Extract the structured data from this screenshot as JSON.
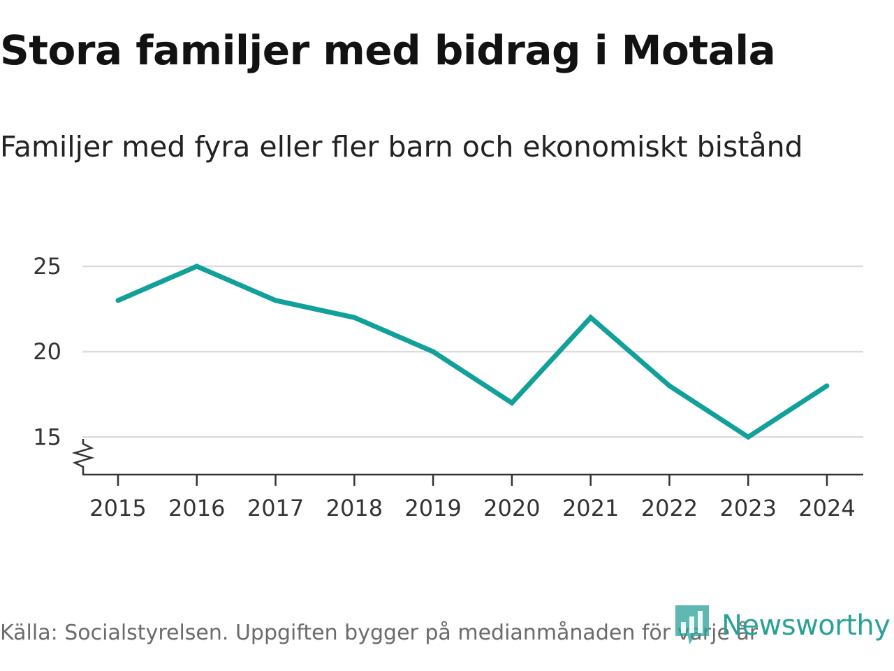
{
  "title": "Stora familjer med bidrag i Motala",
  "subtitle": "Familjer med fyra eller fler barn och ekonomiskt bistånd",
  "source": "Källa: Socialstyrelsen. Uppgiften bygger på medianmånaden för varje år",
  "logo": {
    "text": "Newsworthy",
    "icon": "newsworthy-logo-icon"
  },
  "colors": {
    "line": "#12a19a",
    "grid": "#dcdcdc",
    "axis": "#333333",
    "logo": "#2aa198"
  },
  "chart_data": {
    "type": "line",
    "title": "Stora familjer med bidrag i Motala",
    "subtitle": "Familjer med fyra eller fler barn och ekonomiskt bistånd",
    "xlabel": "",
    "ylabel": "",
    "categories": [
      "2015",
      "2016",
      "2017",
      "2018",
      "2019",
      "2020",
      "2021",
      "2022",
      "2023",
      "2024"
    ],
    "series": [
      {
        "name": "Familjer med fyra eller fler barn och ekonomiskt bistånd",
        "values": [
          23,
          25,
          23,
          22,
          20,
          17,
          22,
          18,
          15,
          18
        ]
      }
    ],
    "y_ticks": [
      15,
      20,
      25
    ],
    "ylim": [
      12.8,
      25
    ],
    "axis_break": true,
    "grid": true
  }
}
